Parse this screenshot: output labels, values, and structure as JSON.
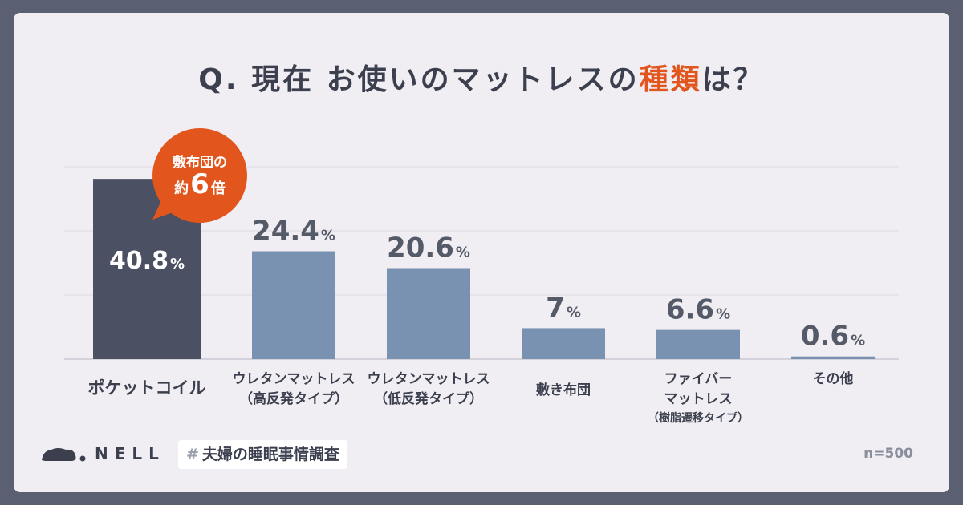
{
  "title": {
    "prefix": "Q. 現在 お使いのマットレスの",
    "highlight": "種類",
    "suffix": "は？"
  },
  "callout": {
    "line1": "敷布団の",
    "pre": "約",
    "number": "6",
    "post": "倍"
  },
  "brand": {
    "logo_text": "NELL"
  },
  "hashtag": {
    "mark": "#",
    "text": "夫婦の睡眠事情調査"
  },
  "sample_size": "n=500",
  "colors": {
    "primary_bar": "#4b5062",
    "secondary_bar": "#7a92b1",
    "accent": "#e2561d",
    "text": "#3b3f4e"
  },
  "chart_data": {
    "type": "bar",
    "title": "Q. 現在 お使いのマットレスの種類は？",
    "unit": "%",
    "ylim": [
      0,
      45
    ],
    "grid": true,
    "categories": [
      [
        "ポケットコイル"
      ],
      [
        "ウレタンマットレス",
        "（高反発タイプ）"
      ],
      [
        "ウレタンマットレス",
        "（低反発タイプ）"
      ],
      [
        "敷き布団"
      ],
      [
        "ファイバー",
        "マットレス",
        "（樹脂遷移タイプ）"
      ],
      [
        "その他"
      ]
    ],
    "values": [
      40.8,
      24.4,
      20.6,
      7,
      6.6,
      0.6
    ],
    "value_labels": [
      "40.8",
      "24.4",
      "20.6",
      "7",
      "6.6",
      "0.6"
    ]
  }
}
